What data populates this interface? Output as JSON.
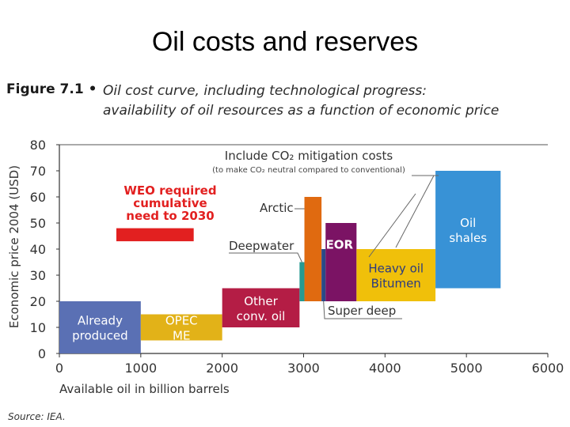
{
  "slide": {
    "title": "Oil costs and reserves"
  },
  "figure": {
    "label": "Figure 7.1 •",
    "caption_line1": "Oil cost curve, including technological progress:",
    "caption_line2": "availability of oil resources as a function of economic price",
    "source": "Source: IEA."
  },
  "chart_data": {
    "type": "bar",
    "xlabel": "Available oil in billion barrels",
    "ylabel": "Economic price 2004 (USD)",
    "xlim": [
      0,
      6000
    ],
    "ylim": [
      0,
      80
    ],
    "xticks": [
      0,
      1000,
      2000,
      3000,
      4000,
      5000,
      6000
    ],
    "yticks": [
      0,
      10,
      20,
      30,
      40,
      50,
      60,
      70,
      80
    ],
    "grid": false,
    "blocks": [
      {
        "label_lines": [
          "Already",
          "produced"
        ],
        "x0": 0,
        "x1": 1000,
        "y0": 0,
        "y1": 20,
        "color": "#5a70b4",
        "text_color": "#ffffff"
      },
      {
        "label_lines": [
          "OPEC",
          "ME"
        ],
        "x0": 1000,
        "x1": 2000,
        "y0": 5,
        "y1": 15,
        "color": "#e2b218",
        "text_color": "#ffffff"
      },
      {
        "label_lines": [
          "Other",
          "conv. oil"
        ],
        "x0": 2000,
        "x1": 2950,
        "y0": 10,
        "y1": 25,
        "color": "#b41d45",
        "text_color": "#ffffff"
      },
      {
        "label_lines": [],
        "x0": 2950,
        "x1": 3010,
        "y0": 20,
        "y1": 35,
        "color": "#269a92",
        "text_color": "#ffffff"
      },
      {
        "label_lines": [],
        "x0": 3010,
        "x1": 3220,
        "y0": 20,
        "y1": 60,
        "color": "#e06a10",
        "text_color": "#ffffff"
      },
      {
        "label_lines": [],
        "x0": 3220,
        "x1": 3270,
        "y0": 20,
        "y1": 40,
        "color": "#2a4a86",
        "text_color": "#ffffff"
      },
      {
        "label_lines": [
          "EOR"
        ],
        "x0": 3270,
        "x1": 3650,
        "y0": 20,
        "y1": 50,
        "color": "#7b1364",
        "text_color": "#ffffff"
      },
      {
        "label_lines": [
          "Heavy oil",
          "Bitumen"
        ],
        "x0": 3650,
        "x1": 4620,
        "y0": 20,
        "y1": 40,
        "color": "#f0c00a",
        "text_color": "#2a3a80"
      },
      {
        "label_lines": [
          "Oil",
          "shales"
        ],
        "x0": 4620,
        "x1": 5420,
        "y0": 25,
        "y1": 70,
        "color": "#3892d6",
        "text_color": "#ffffff"
      }
    ],
    "weo_bar": {
      "x0": 700,
      "x1": 1650,
      "y0": 43,
      "y1": 48,
      "color": "#e22020"
    },
    "annotations": {
      "weo_lines": [
        "WEO required",
        "cumulative",
        "need to 2030"
      ],
      "co2_title": "Include CO₂ mitigation costs",
      "co2_sub": "(to make CO₂ neutral compared to conventional)",
      "arctic": "Arctic",
      "deepwater": "Deepwater",
      "super_deep": "Super deep"
    }
  }
}
